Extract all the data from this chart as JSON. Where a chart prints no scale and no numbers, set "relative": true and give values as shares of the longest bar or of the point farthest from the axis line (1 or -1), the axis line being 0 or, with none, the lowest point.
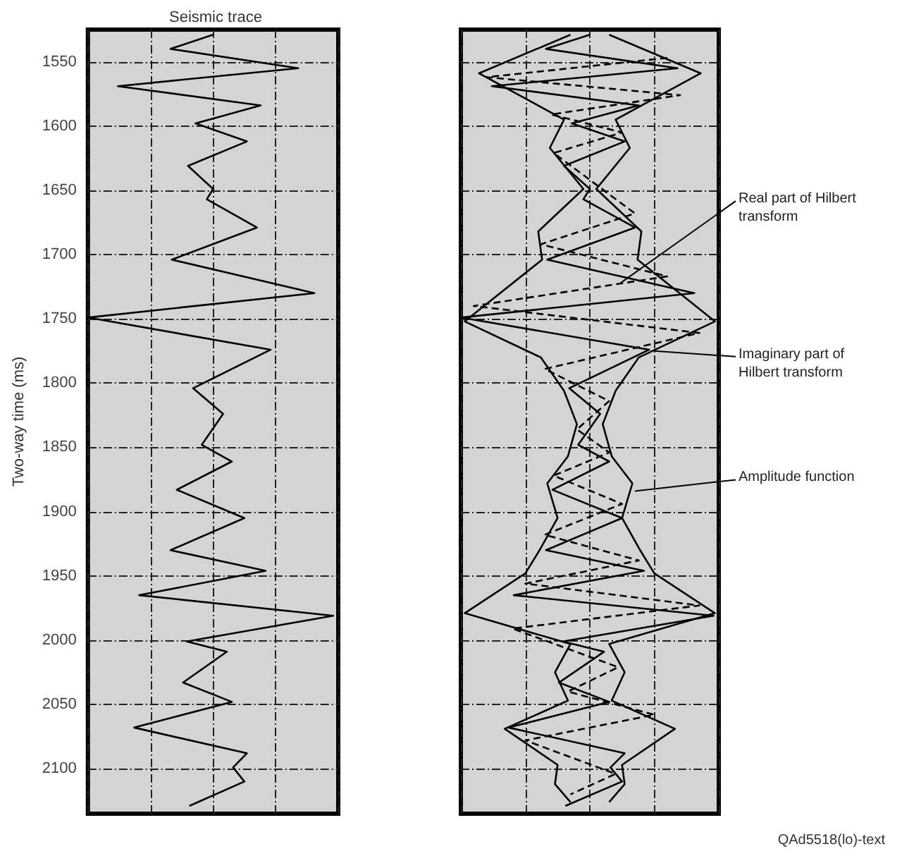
{
  "chart_data": [
    {
      "type": "line",
      "title": "Seismic trace",
      "ylabel": "Two-way time (ms)",
      "orientation": "horizontal",
      "relative": true,
      "ylim": [
        2135,
        1525
      ],
      "yticks": [
        1550,
        1600,
        1650,
        1700,
        1750,
        1800,
        1850,
        1900,
        1950,
        2000,
        2050,
        2100
      ],
      "grid": true,
      "line_style": "solid",
      "series": [
        {
          "color": "#000000",
          "x": [
            1529,
            1540,
            1555,
            1569,
            1584,
            1598,
            1612,
            1631,
            1649,
            1657,
            1679,
            1704,
            1730,
            1749,
            1774,
            1804,
            1824,
            1848,
            1861,
            1883,
            1905,
            1930,
            1946,
            1965,
            1981,
            2001,
            2009,
            2033,
            2048,
            2068,
            2088,
            2099,
            2110,
            2129
          ],
          "values": [
            0,
            -0.34,
            0.68,
            -0.76,
            0.38,
            -0.14,
            0.27,
            -0.2,
            0,
            -0.05,
            0.35,
            -0.33,
            0.81,
            -1.0,
            0.46,
            -0.16,
            0.08,
            -0.09,
            0.15,
            -0.29,
            0.25,
            -0.34,
            0.42,
            -0.59,
            0.96,
            -0.21,
            0.11,
            -0.24,
            0.15,
            -0.63,
            0.27,
            0.16,
            0.25,
            -0.19
          ]
        }
      ]
    },
    {
      "type": "line",
      "orientation": "horizontal",
      "relative": true,
      "ylim": [
        2135,
        1525
      ],
      "yticks": [
        1550,
        1600,
        1650,
        1700,
        1750,
        1800,
        1850,
        1900,
        1950,
        2000,
        2050,
        2100
      ],
      "tick_labels": false,
      "grid": true,
      "line_style": "solid",
      "annotations": [
        {
          "text": "Real part of Hilbert transform",
          "x": 0.24,
          "y": 1722
        },
        {
          "text": "Imaginary part of Hilbert transform",
          "x": 0.5,
          "y": 1775
        },
        {
          "text": "Amplitude function",
          "x": 0.35,
          "y": 1884
        },
        "QAd5518(lo)-text"
      ],
      "series": [
        {
          "color": "#000000",
          "x": [
            1529,
            1540,
            1555,
            1569,
            1584,
            1598,
            1612,
            1631,
            1649,
            1657,
            1679,
            1704,
            1730,
            1749,
            1774,
            1804,
            1824,
            1848,
            1861,
            1883,
            1905,
            1930,
            1946,
            1965,
            1981,
            2001,
            2009,
            2033,
            2048,
            2068,
            2088,
            2099,
            2110,
            2129
          ],
          "values": [
            0,
            -0.34,
            0.68,
            -0.76,
            0.38,
            -0.14,
            0.27,
            -0.2,
            0,
            -0.05,
            0.35,
            -0.33,
            0.81,
            -1.0,
            0.46,
            -0.16,
            0.08,
            -0.09,
            0.15,
            -0.29,
            0.25,
            -0.34,
            0.42,
            -0.59,
            0.96,
            -0.21,
            0.11,
            -0.24,
            0.15,
            -0.63,
            0.27,
            0.16,
            0.25,
            -0.19
          ]
        },
        {
          "color": "#000000",
          "line_style": "dashed",
          "x": [
            1547,
            1562,
            1576,
            1591,
            1605,
            1621,
            1668,
            1692,
            1717,
            1740,
            1761,
            1789,
            1814,
            1836,
            1854,
            1872,
            1894,
            1918,
            1938,
            1956,
            1973,
            1991,
            2021,
            2040,
            2058,
            2078,
            2104,
            2120
          ],
          "values": [
            0.6,
            -0.8,
            0.7,
            -0.3,
            0.25,
            -0.28,
            0.35,
            -0.38,
            0.6,
            -0.9,
            0.85,
            -0.35,
            0.15,
            -0.1,
            0.15,
            -0.28,
            0.25,
            -0.35,
            0.38,
            -0.5,
            0.85,
            -0.6,
            0.22,
            -0.17,
            0.5,
            -0.5,
            0.2,
            -0.15
          ]
        },
        {
          "color": "#000000",
          "x": [
            1529,
            1559,
            1595,
            1617,
            1649,
            1682,
            1704,
            1752,
            1780,
            1806,
            1832,
            1857,
            1878,
            1905,
            1930,
            1948,
            1979,
            2003,
            2025,
            2047,
            2069,
            2097,
            2112,
            2126
          ],
          "values": [
            0.15,
            0.86,
            0.2,
            0.31,
            0.05,
            0.4,
            0.37,
            0.97,
            0.38,
            0.2,
            0.1,
            0.17,
            0.33,
            0.25,
            0.39,
            0.5,
            0.97,
            0.15,
            0.27,
            0.17,
            0.66,
            0.25,
            0.27,
            0.15
          ]
        },
        {
          "color": "#000000",
          "x": [
            1529,
            1559,
            1595,
            1617,
            1649,
            1682,
            1704,
            1752,
            1780,
            1806,
            1832,
            1857,
            1878,
            1905,
            1930,
            1948,
            1979,
            2003,
            2025,
            2047,
            2069,
            2097,
            2112,
            2126
          ],
          "values": [
            -0.15,
            -0.86,
            -0.2,
            -0.31,
            -0.05,
            -0.4,
            -0.37,
            -0.97,
            -0.38,
            -0.2,
            -0.1,
            -0.17,
            -0.33,
            -0.25,
            -0.39,
            -0.5,
            -0.97,
            -0.15,
            -0.27,
            -0.17,
            -0.66,
            -0.25,
            -0.27,
            -0.15
          ]
        }
      ]
    }
  ]
}
